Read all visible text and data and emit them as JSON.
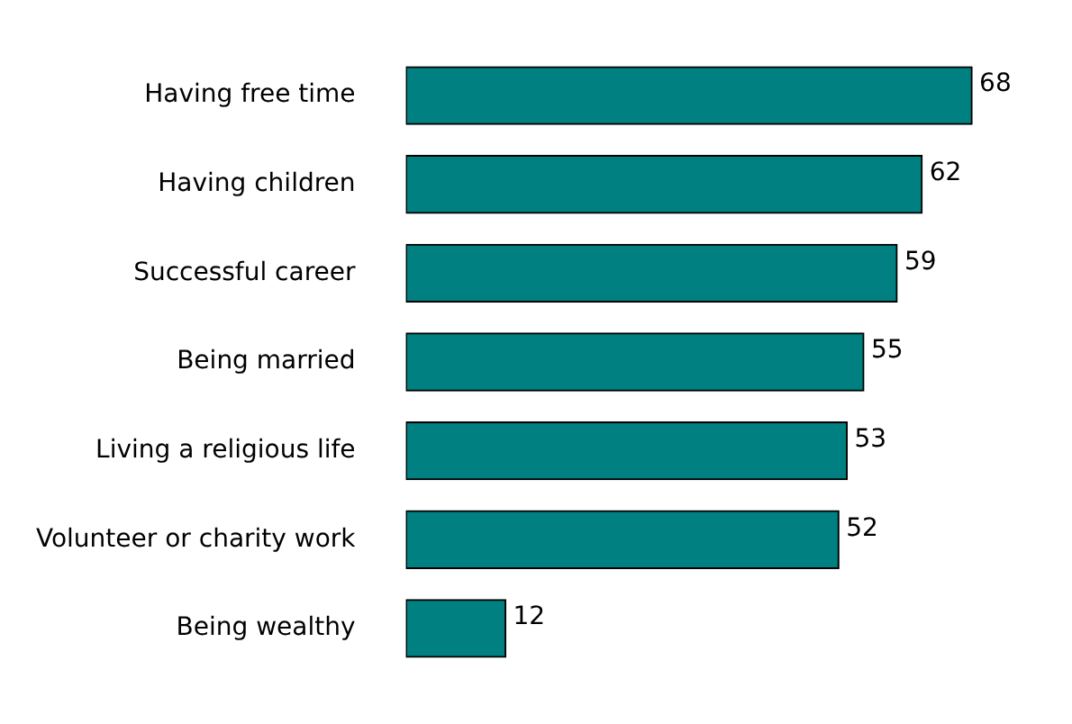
{
  "chart_data": {
    "type": "bar",
    "orientation": "horizontal",
    "categories": [
      "Having free time",
      "Having children",
      "Successful career",
      "Being married",
      "Living a religious life",
      "Volunteer or charity work",
      "Being wealthy"
    ],
    "values": [
      68,
      62,
      59,
      55,
      53,
      52,
      12
    ],
    "color": "#008080",
    "data_labels": true,
    "legend": false,
    "tick_labels": "y"
  }
}
